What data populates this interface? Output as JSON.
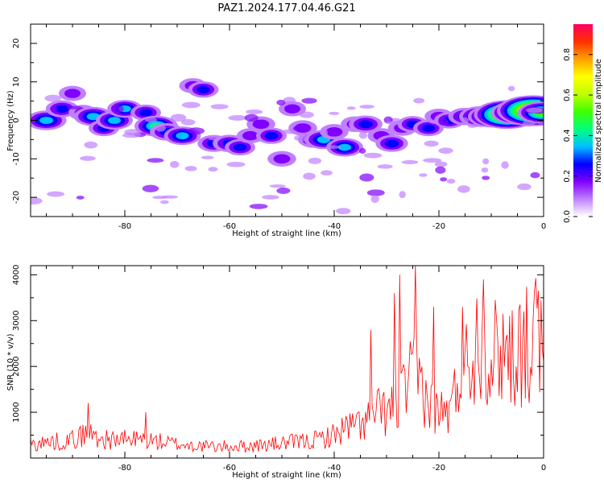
{
  "figure": {
    "title": "PAZ1.2024.177.04.46.G21"
  },
  "chart_data": [
    {
      "type": "heatmap",
      "title": "PAZ1.2024.177.04.46.G21",
      "xlabel": "Height of straight line (km)",
      "ylabel": "Frequency (Hz)",
      "xlim": [
        -98,
        0
      ],
      "ylim": [
        -25,
        25
      ],
      "x_ticks": [
        -80,
        -60,
        -40,
        -20,
        0
      ],
      "y_ticks": [
        -20,
        -10,
        0,
        10,
        20
      ],
      "colorbar": {
        "label": "Normalized spectral amplitude",
        "range": [
          0,
          0.95
        ],
        "ticks": [
          0.0,
          0.2,
          0.4,
          0.6,
          0.8
        ],
        "colors": [
          "#ffffff",
          "#c080ff",
          "#8000ff",
          "#0000ff",
          "#00c0ff",
          "#00ff80",
          "#40ff00",
          "#c0ff00",
          "#ffff00",
          "#ffa000",
          "#ff3000",
          "#ff0060"
        ]
      },
      "blobs": [
        {
          "x": -95,
          "y": 0,
          "v": 0.3
        },
        {
          "x": -92,
          "y": 3,
          "v": 0.18
        },
        {
          "x": -90,
          "y": 7,
          "v": 0.1
        },
        {
          "x": -88,
          "y": 2,
          "v": 0.12
        },
        {
          "x": -86,
          "y": 1,
          "v": 0.28
        },
        {
          "x": -84,
          "y": -2,
          "v": 0.15
        },
        {
          "x": -82,
          "y": 0,
          "v": 0.25
        },
        {
          "x": -80,
          "y": 3,
          "v": 0.22
        },
        {
          "x": -76,
          "y": 2,
          "v": 0.15
        },
        {
          "x": -74,
          "y": -1.5,
          "v": 0.35
        },
        {
          "x": -72,
          "y": -3,
          "v": 0.2
        },
        {
          "x": -69,
          "y": -4,
          "v": 0.25
        },
        {
          "x": -67,
          "y": 9,
          "v": 0.1
        },
        {
          "x": -65,
          "y": 8,
          "v": 0.15
        },
        {
          "x": -63,
          "y": -6,
          "v": 0.18
        },
        {
          "x": -60,
          "y": -6,
          "v": 0.2
        },
        {
          "x": -58,
          "y": -7,
          "v": 0.15
        },
        {
          "x": -56,
          "y": -4,
          "v": 0.1
        },
        {
          "x": -54,
          "y": -1,
          "v": 0.12
        },
        {
          "x": -52,
          "y": -4,
          "v": 0.15
        },
        {
          "x": -50,
          "y": -10,
          "v": 0.12
        },
        {
          "x": -48,
          "y": 3,
          "v": 0.1
        },
        {
          "x": -46,
          "y": -2,
          "v": 0.12
        },
        {
          "x": -44,
          "y": -5,
          "v": 0.15
        },
        {
          "x": -42,
          "y": -5,
          "v": 0.28
        },
        {
          "x": -40,
          "y": -3,
          "v": 0.12
        },
        {
          "x": -38,
          "y": -7,
          "v": 0.25
        },
        {
          "x": -36,
          "y": -1,
          "v": 0.12
        },
        {
          "x": -34,
          "y": -1,
          "v": 0.2
        },
        {
          "x": -31,
          "y": -4,
          "v": 0.1
        },
        {
          "x": -29,
          "y": -6,
          "v": 0.18
        },
        {
          "x": -27,
          "y": -2,
          "v": 0.12
        },
        {
          "x": -25,
          "y": -1,
          "v": 0.15
        },
        {
          "x": -22,
          "y": -2,
          "v": 0.15
        },
        {
          "x": -20,
          "y": 1,
          "v": 0.12
        },
        {
          "x": -18,
          "y": 0,
          "v": 0.15
        },
        {
          "x": -15,
          "y": 1,
          "v": 0.2
        },
        {
          "x": -12,
          "y": 1,
          "v": 0.35
        },
        {
          "x": -10,
          "y": 1,
          "v": 0.4
        },
        {
          "x": -7,
          "y": 1.5,
          "v": 0.7
        },
        {
          "x": -5,
          "y": 2,
          "v": 0.5
        },
        {
          "x": -2,
          "y": 2.5,
          "v": 0.8
        },
        {
          "x": -0.5,
          "y": 2,
          "v": 0.4
        }
      ]
    },
    {
      "type": "line",
      "xlabel": "Height of straight line (km)",
      "ylabel": "SNR (10 * v/v)",
      "xlim": [
        -98,
        0
      ],
      "ylim": [
        0,
        4200
      ],
      "x_ticks": [
        -80,
        -60,
        -40,
        -20,
        0
      ],
      "y_ticks": [
        1000,
        2000,
        3000,
        4000
      ],
      "series": [
        {
          "color": "#ff0000",
          "x_step_km": 0.25,
          "anchors": {
            "x": [
              -98,
              -90,
              -87,
              -84,
              -80,
              -76,
              -72,
              -68,
              -64,
              -60,
              -56,
              -52,
              -48,
              -44,
              -40,
              -38,
              -36,
              -34,
              -32,
              -30,
              -28,
              -26,
              -24,
              -22,
              -20,
              -18,
              -16,
              -14,
              -12,
              -10,
              -8,
              -6,
              -4,
              -2,
              -1,
              0
            ],
            "y": [
              300,
              400,
              550,
              400,
              400,
              400,
              330,
              280,
              250,
              250,
              260,
              300,
              340,
              380,
              500,
              650,
              700,
              800,
              1000,
              1000,
              1100,
              1600,
              1800,
              1200,
              1000,
              1000,
              1700,
              2200,
              2800,
              2200,
              2450,
              2300,
              2400,
              2500,
              2800,
              2000
            ]
          },
          "peaks": [
            {
              "x": -87,
              "y": 1200
            },
            {
              "x": -76,
              "y": 1000
            },
            {
              "x": -33,
              "y": 2800
            },
            {
              "x": -28.5,
              "y": 3600
            },
            {
              "x": -27.5,
              "y": 4000
            },
            {
              "x": -24.5,
              "y": 4200
            },
            {
              "x": -21,
              "y": 3300
            },
            {
              "x": -15.5,
              "y": 3300
            },
            {
              "x": -11.5,
              "y": 3900
            },
            {
              "x": -9,
              "y": 3050
            },
            {
              "x": -4.5,
              "y": 3350
            },
            {
              "x": -1,
              "y": 3650
            }
          ],
          "noise_frac": 0.55
        }
      ]
    }
  ]
}
